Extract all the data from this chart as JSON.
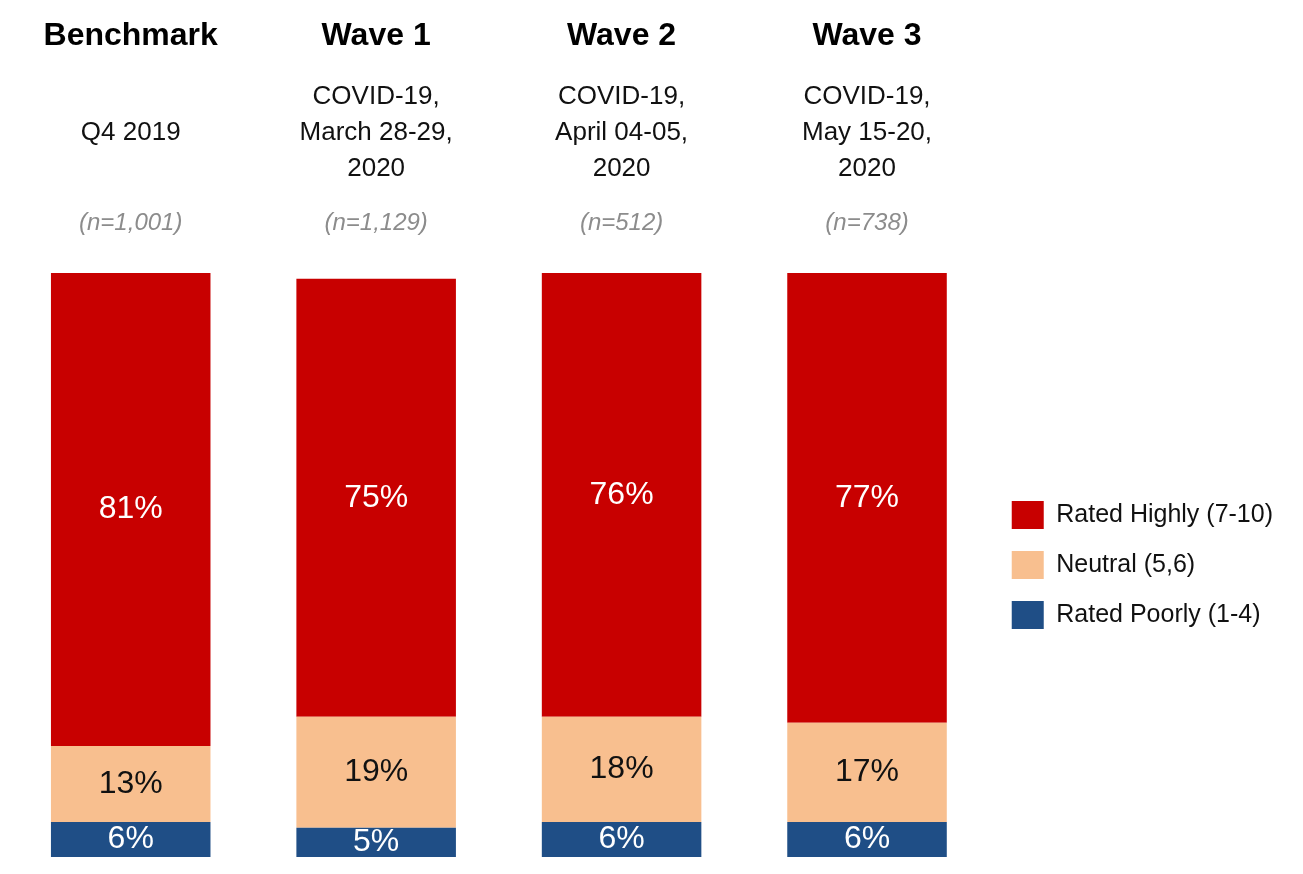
{
  "chart_data": {
    "type": "bar",
    "stacked": true,
    "categories": [
      "Benchmark",
      "Wave 1",
      "Wave 2",
      "Wave 3"
    ],
    "series": [
      {
        "name": "Rated Poorly (1-4)",
        "color": "#1f4e86",
        "values": [
          6,
          5,
          6,
          6
        ],
        "value_labels": [
          "6%",
          "5%",
          "6%",
          "6%"
        ]
      },
      {
        "name": "Neutral (5,6)",
        "color": "#f8bf8f",
        "values": [
          13,
          19,
          18,
          17
        ],
        "value_labels": [
          "13%",
          "19%",
          "18%",
          "17%"
        ]
      },
      {
        "name": "Rated Highly (7-10)",
        "color": "#c80000",
        "values": [
          81,
          75,
          76,
          77
        ],
        "value_labels": [
          "81%",
          "75%",
          "76%",
          "77%"
        ]
      }
    ],
    "annotations": [
      "Q4 2019",
      "(n=1,001)",
      "COVID-19,\nMarch 28-29,\n2020",
      "(n=1,129)",
      "COVID-19,\nApril 04-05,\n2020",
      "(n=512)",
      "COVID-19,\nMay 15-20,\n2020",
      "(n=738)"
    ],
    "legend": "right",
    "grid": false
  }
}
